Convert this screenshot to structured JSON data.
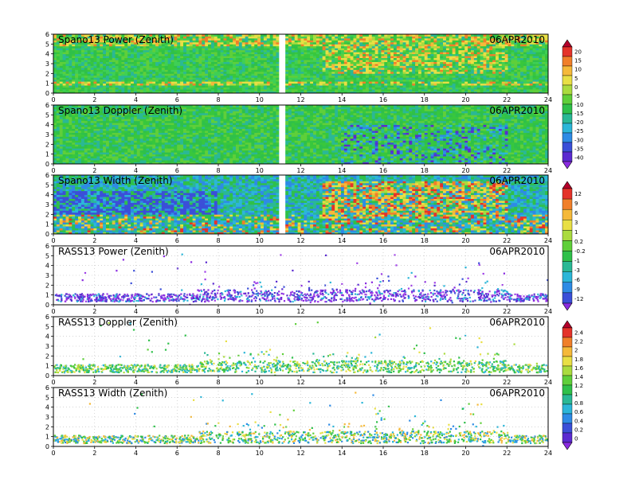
{
  "chart_data": [
    {
      "type": "heatmap",
      "title": "Spano13 Power (Zenith)",
      "date": "06APR2010",
      "x": {
        "range": [
          0,
          24
        ],
        "ticks": [
          0,
          2,
          4,
          6,
          8,
          10,
          12,
          14,
          16,
          18,
          20,
          22,
          24
        ]
      },
      "y": {
        "range": [
          0,
          6
        ],
        "ticks": [
          0,
          1,
          2,
          3,
          4,
          5,
          6
        ]
      },
      "colorbar_group": "power",
      "grid": true
    },
    {
      "type": "heatmap",
      "title": "Spano13 Doppler (Zenith)",
      "date": "06APR2010",
      "x": {
        "range": [
          0,
          24
        ],
        "ticks": [
          0,
          2,
          4,
          6,
          8,
          10,
          12,
          14,
          16,
          18,
          20,
          22,
          24
        ]
      },
      "y": {
        "range": [
          0,
          6
        ],
        "ticks": [
          0,
          1,
          2,
          3,
          4,
          5,
          6
        ]
      },
      "colorbar_group": "power",
      "grid": true
    },
    {
      "type": "heatmap",
      "title": "Spano13 Width (Zenith)",
      "date": "06APR2010",
      "x": {
        "range": [
          0,
          24
        ],
        "ticks": [
          0,
          2,
          4,
          6,
          8,
          10,
          12,
          14,
          16,
          18,
          20,
          22,
          24
        ]
      },
      "y": {
        "range": [
          0,
          6
        ],
        "ticks": [
          0,
          1,
          2,
          3,
          4,
          5,
          6
        ]
      },
      "colorbar_group": "width",
      "grid": true
    },
    {
      "type": "heatmap",
      "title": "RASS13 Power (Zenith)",
      "date": "06APR2010",
      "x": {
        "range": [
          0,
          24
        ],
        "ticks": [
          0,
          2,
          4,
          6,
          8,
          10,
          12,
          14,
          16,
          18,
          20,
          22,
          24
        ]
      },
      "y": {
        "range": [
          0,
          6
        ],
        "ticks": [
          0,
          1,
          2,
          3,
          4,
          5,
          6
        ]
      },
      "colorbar_group": "width",
      "grid": true
    },
    {
      "type": "heatmap",
      "title": "RASS13 Doppler (Zenith)",
      "date": "06APR2010",
      "x": {
        "range": [
          0,
          24
        ],
        "ticks": [
          0,
          2,
          4,
          6,
          8,
          10,
          12,
          14,
          16,
          18,
          20,
          22,
          24
        ]
      },
      "y": {
        "range": [
          0,
          6
        ],
        "ticks": [
          0,
          1,
          2,
          3,
          4,
          5,
          6
        ]
      },
      "colorbar_group": "rass",
      "grid": true
    },
    {
      "type": "heatmap",
      "title": "RASS13 Width (Zenith)",
      "date": "06APR2010",
      "x": {
        "range": [
          0,
          24
        ],
        "ticks": [
          0,
          2,
          4,
          6,
          8,
          10,
          12,
          14,
          16,
          18,
          20,
          22,
          24
        ]
      },
      "y": {
        "range": [
          0,
          6
        ],
        "ticks": [
          0,
          1,
          2,
          3,
          4,
          5,
          6
        ]
      },
      "colorbar_group": "rass",
      "grid": true
    }
  ],
  "colorbars": [
    {
      "name": "power",
      "labels": [
        "20",
        "15",
        "10",
        "5",
        "0",
        "-5",
        "-10",
        "-15",
        "-20",
        "-25",
        "-30",
        "-35",
        "-40"
      ],
      "colors": [
        "#b4002a",
        "#e4332a",
        "#f07f2a",
        "#f5b93a",
        "#e8df45",
        "#aadb3f",
        "#5fcf3a",
        "#2fc04a",
        "#2ab895",
        "#2cb6d8",
        "#2e8be5",
        "#3b4fd8",
        "#5b2bd0",
        "#8a2be0"
      ]
    },
    {
      "name": "width",
      "labels": [
        "12",
        "9",
        "6",
        "3",
        "1",
        "0.2",
        "-0.2",
        "-1",
        "-3",
        "-6",
        "-9",
        "-12"
      ],
      "colors": [
        "#b4002a",
        "#e4332a",
        "#f07f2a",
        "#f5b93a",
        "#e8df45",
        "#aadb3f",
        "#5fcf3a",
        "#2fc04a",
        "#2ab895",
        "#2cb6d8",
        "#2e8be5",
        "#3b4fd8",
        "#8a2be0"
      ]
    },
    {
      "name": "rass",
      "labels": [
        "2.4",
        "2.2",
        "2",
        "1.8",
        "1.6",
        "1.4",
        "1.2",
        "1",
        "0.8",
        "0.6",
        "0.4",
        "0.2",
        "0"
      ],
      "colors": [
        "#b4002a",
        "#e4332a",
        "#f07f2a",
        "#f5b93a",
        "#e8df45",
        "#aadb3f",
        "#5fcf3a",
        "#2fc04a",
        "#2ab895",
        "#2cb6d8",
        "#2e8be5",
        "#3b4fd8",
        "#5b2bd0",
        "#8a2be0"
      ]
    }
  ]
}
